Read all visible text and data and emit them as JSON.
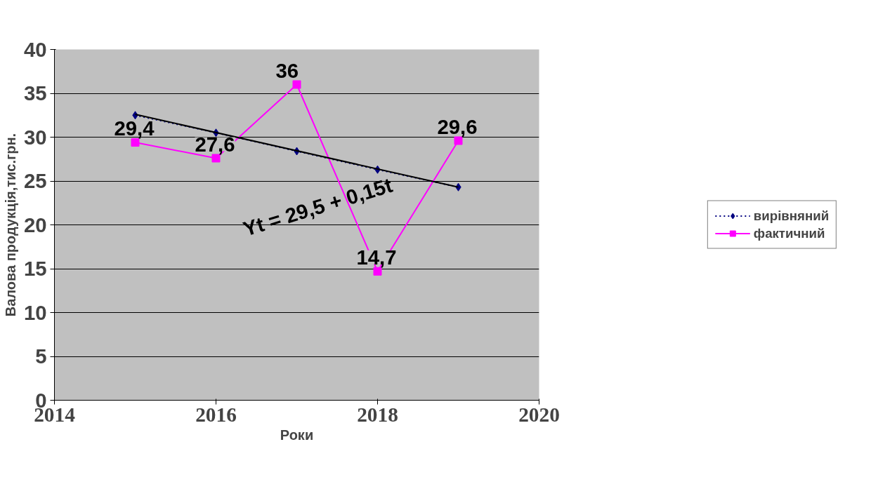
{
  "chart_data": {
    "type": "line",
    "xlabel": "Роки",
    "ylabel": "Валова продукція,тис.грн.",
    "x": [
      2015,
      2016,
      2017,
      2018,
      2019
    ],
    "series": [
      {
        "name": "вирівняний",
        "color": "#000080",
        "values": [
          32.5,
          30.5,
          28.4,
          26.3,
          24.3
        ],
        "marker": "diamond",
        "line_style": "dotted"
      },
      {
        "name": "фактичний",
        "color": "#ff00ff",
        "values": [
          29.4,
          27.6,
          36,
          14.7,
          29.6
        ],
        "marker": "square",
        "line_style": "solid",
        "value_labels": [
          "29,4",
          "27,6",
          "36",
          "14,7",
          "29,6"
        ]
      },
      {
        "type": "line",
        "color": "#000000",
        "x": [
          2015,
          2019
        ],
        "values": [
          32.6,
          24.3
        ],
        "marker": "none",
        "line_style": "solid"
      }
    ],
    "annotations": [
      "Yt = 29,5 + 0,15t"
    ],
    "xlim": [
      2014,
      2020
    ],
    "xticks": [
      2014,
      2016,
      2018,
      2020
    ],
    "ylim": [
      0,
      40
    ],
    "yticks": [
      0,
      5,
      10,
      15,
      20,
      25,
      30,
      35,
      40
    ],
    "grid": "y",
    "legend": "right"
  }
}
